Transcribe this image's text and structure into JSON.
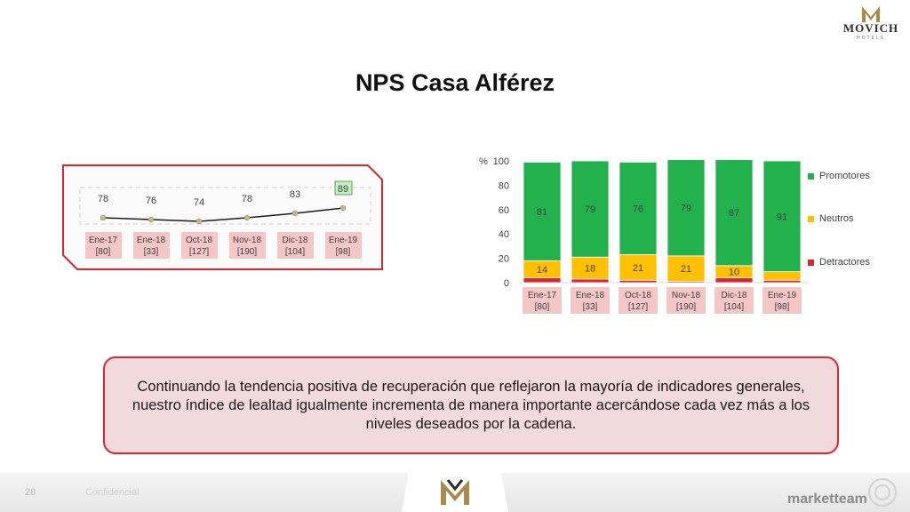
{
  "header": {
    "brand_name": "MOVICH",
    "brand_sub": "HOTELS",
    "title": "NPS Casa Alférez"
  },
  "trend_chart": {
    "type": "line",
    "categories": [
      "Ene-17",
      "Ene-18",
      "Oct-18",
      "Nov-18",
      "Dic-18",
      "Ene-19"
    ],
    "samples": [
      "[80]",
      "[33]",
      "[127]",
      "[190]",
      "[104]",
      "[98]"
    ],
    "values": [
      78,
      76,
      74,
      78,
      83,
      89
    ],
    "highlighted_index": 5,
    "colors": {
      "line": "#1a1a1a",
      "marker": "#c9b98a",
      "highlight": "#c6efc0",
      "highlight_border": "#5aa35a",
      "label_box": "#f4c6c6",
      "border": "#e0242e"
    }
  },
  "chart_data": {
    "type": "bar",
    "stacked": true,
    "categories": [
      "Ene-17",
      "Ene-18",
      "Oct-18",
      "Nov-18",
      "Dic-18",
      "Ene-19"
    ],
    "samples": [
      "[80]",
      "[33]",
      "[127]",
      "[190]",
      "[104]",
      "[98]"
    ],
    "series": [
      {
        "name": "Detractores",
        "values": [
          4,
          3,
          2,
          1,
          4,
          2
        ],
        "color": "#e0242e"
      },
      {
        "name": "Neutros",
        "values": [
          14,
          18,
          21,
          21,
          10,
          7
        ],
        "color": "#ffc000"
      },
      {
        "name": "Promotores",
        "values": [
          81,
          79,
          76,
          79,
          87,
          91
        ],
        "color": "#22b14c"
      }
    ],
    "ylabel": "%",
    "ylim": [
      0,
      100
    ],
    "yticks": [
      0,
      20,
      40,
      60,
      80,
      100
    ],
    "legend_position": "right",
    "grid": false,
    "label_box_color": "#f4c6c6"
  },
  "summary": {
    "text": "Continuando la tendencia positiva de recuperación que reflejaron la mayoría de indicadores generales, nuestro índice de lealtad igualmente incrementa de manera importante acercándose cada vez más a los niveles deseados por la cadena."
  },
  "footer": {
    "page_number": "28",
    "note": "Confidencial",
    "brand": "marketteam"
  }
}
